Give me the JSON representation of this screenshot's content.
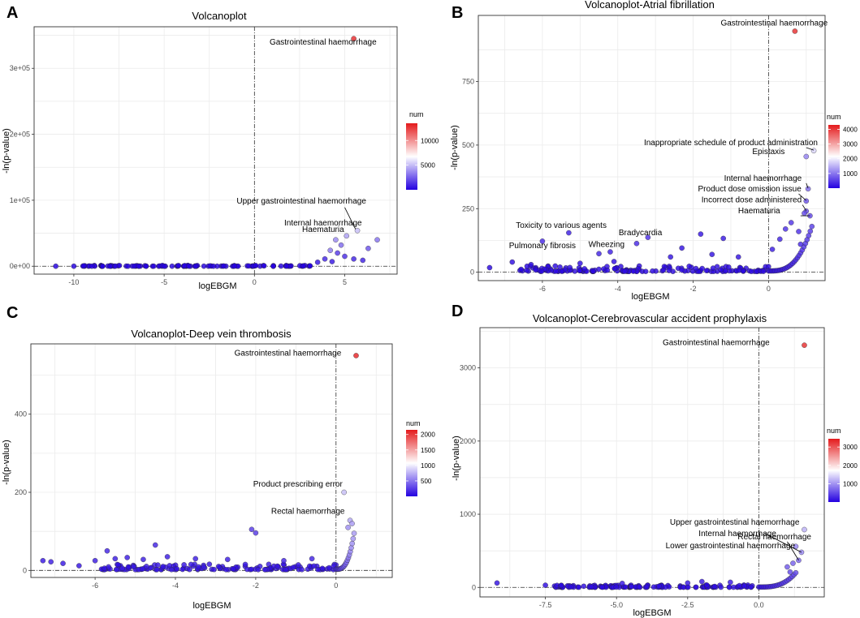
{
  "colors": {
    "low": "#2400e0",
    "mid": "#ffffff",
    "high": "#e41a1c"
  },
  "chart_data": [
    {
      "id": "A",
      "type": "scatter",
      "panel_label": "A",
      "title": "Volcanoplot",
      "xlabel": "logEBGM",
      "ylabel": "-ln(p-value)",
      "xlim": [
        -12.2,
        7.9
      ],
      "ylim": [
        -12000,
        363000
      ],
      "xticks": [
        -10,
        -5,
        0,
        5
      ],
      "yticks": [
        0,
        100000,
        200000,
        300000
      ],
      "ytick_labels": [
        "0e+00",
        "1e+05",
        "2e+05",
        "3e+05"
      ],
      "legend": {
        "title": "num",
        "min": 1,
        "max": 13500,
        "ticks": [
          5000,
          10000
        ]
      },
      "points": [
        {
          "x": 5.5,
          "y": 345000,
          "num": 13000
        },
        {
          "x": 6.8,
          "y": 40000,
          "num": 3000
        },
        {
          "x": 6.3,
          "y": 27000,
          "num": 2200
        },
        {
          "x": 5.7,
          "y": 54000,
          "num": 5000
        },
        {
          "x": 5.1,
          "y": 46000,
          "num": 4200
        },
        {
          "x": 4.8,
          "y": 32000,
          "num": 2800
        },
        {
          "x": 4.5,
          "y": 40000,
          "num": 3600
        },
        {
          "x": 4.2,
          "y": 24000,
          "num": 3200
        },
        {
          "x": 4.6,
          "y": 20000,
          "num": 1500
        },
        {
          "x": 5.0,
          "y": 15000,
          "num": 1200
        },
        {
          "x": 5.5,
          "y": 11000,
          "num": 900
        },
        {
          "x": 6.0,
          "y": 9000,
          "num": 900
        },
        {
          "x": 3.9,
          "y": 11000,
          "num": 1000
        },
        {
          "x": 4.3,
          "y": 7000,
          "num": 600
        },
        {
          "x": 3.5,
          "y": 6000,
          "num": 500
        },
        {
          "x": -11.0,
          "y": 0,
          "num": 50
        },
        {
          "x": -10.0,
          "y": 0,
          "num": 50
        },
        {
          "x": -9.0,
          "y": 0,
          "num": 50
        },
        {
          "x": -8.0,
          "y": 0,
          "num": 50
        },
        {
          "x": -7.0,
          "y": 0,
          "num": 50
        },
        {
          "x": -6.0,
          "y": 0,
          "num": 50
        },
        {
          "x": -5.0,
          "y": 0,
          "num": 50
        }
      ],
      "bulk": {
        "x_from": -9.5,
        "x_to": 3.2,
        "count": 110,
        "y_base": 0,
        "y_amp": 1200,
        "num": 60
      },
      "annotations": [
        {
          "text": "Gastrointestinal haemorrhage",
          "x": 3.8,
          "y": 336000,
          "anchor": "middle"
        },
        {
          "text": "Upper gastrointestinal haemorrhage",
          "x": 2.6,
          "y": 95000,
          "anchor": "middle"
        },
        {
          "text": "Internal haemorrhage",
          "x": 3.8,
          "y": 62000,
          "anchor": "middle"
        },
        {
          "text": "Haematuria",
          "x": 3.8,
          "y": 52000,
          "anchor": "middle"
        }
      ],
      "leaders": [
        {
          "x1": 5.0,
          "y1": 89000,
          "x2": 5.6,
          "y2": 56000
        }
      ]
    },
    {
      "id": "B",
      "type": "scatter",
      "panel_label": "B",
      "title": "Volcanoplot-Atrial fibrillation",
      "xlabel": "logEBGM",
      "ylabel": "-ln(p-value)",
      "xlim": [
        -7.7,
        1.5
      ],
      "ylim": [
        -33,
        1010
      ],
      "xticks": [
        -6,
        -4,
        -2,
        0
      ],
      "yticks": [
        0,
        250,
        500,
        750
      ],
      "ytick_labels": [
        "0",
        "250",
        "500",
        "750"
      ],
      "legend": {
        "title": "num",
        "min": 1,
        "max": 4300,
        "ticks": [
          1000,
          2000,
          3000,
          4000
        ]
      },
      "points": [
        {
          "x": 0.7,
          "y": 948,
          "num": 4100
        },
        {
          "x": 1.2,
          "y": 478,
          "num": 1800
        },
        {
          "x": 1.0,
          "y": 455,
          "num": 1100
        },
        {
          "x": 1.05,
          "y": 328,
          "num": 900
        },
        {
          "x": 1.0,
          "y": 280,
          "num": 700
        },
        {
          "x": 1.0,
          "y": 240,
          "num": 650
        },
        {
          "x": 1.1,
          "y": 222,
          "num": 600
        },
        {
          "x": 0.95,
          "y": 232,
          "num": 650
        },
        {
          "x": -6.0,
          "y": 122,
          "num": 350
        },
        {
          "x": -5.3,
          "y": 155,
          "num": 250
        },
        {
          "x": -3.2,
          "y": 137,
          "num": 400
        },
        {
          "x": -3.5,
          "y": 113,
          "num": 350
        },
        {
          "x": -4.5,
          "y": 73,
          "num": 300
        },
        {
          "x": -4.2,
          "y": 80,
          "num": 250
        },
        {
          "x": -1.2,
          "y": 133,
          "num": 200
        },
        {
          "x": -1.8,
          "y": 150,
          "num": 180
        },
        {
          "x": -7.4,
          "y": 18,
          "num": 60
        },
        {
          "x": -6.8,
          "y": 40,
          "num": 120
        },
        {
          "x": -6.3,
          "y": 30,
          "num": 100
        },
        {
          "x": -5.0,
          "y": 35,
          "num": 110
        },
        {
          "x": -4.1,
          "y": 42,
          "num": 120
        },
        {
          "x": -2.6,
          "y": 60,
          "num": 150
        },
        {
          "x": -2.3,
          "y": 95,
          "num": 150
        },
        {
          "x": -1.5,
          "y": 70,
          "num": 150
        },
        {
          "x": -0.8,
          "y": 60,
          "num": 150
        },
        {
          "x": 0.1,
          "y": 90,
          "num": 250
        },
        {
          "x": 0.3,
          "y": 130,
          "num": 300
        },
        {
          "x": 0.45,
          "y": 170,
          "num": 400
        },
        {
          "x": 0.6,
          "y": 195,
          "num": 450
        },
        {
          "x": 0.8,
          "y": 160,
          "num": 400
        },
        {
          "x": 0.85,
          "y": 110,
          "num": 350
        }
      ],
      "bulk": {
        "x_from": -6.6,
        "x_to": 0.0,
        "count": 150,
        "y_base": 3,
        "y_amp": 22,
        "num": 60
      },
      "curve": {
        "x_from": 0.0,
        "x_to": 1.15,
        "count": 28,
        "y_start": 5,
        "y_end": 180,
        "num": 400
      },
      "annotations": [
        {
          "text": "Gastrointestinal haemorrhage",
          "x": 0.15,
          "y": 970,
          "anchor": "middle"
        },
        {
          "text": "Inappropriate schedule of product administration",
          "x": -1.0,
          "y": 500,
          "anchor": "middle"
        },
        {
          "text": "Epistaxis",
          "x": 0.0,
          "y": 465,
          "anchor": "middle"
        },
        {
          "text": "Internal haemorrhage",
          "x": -0.15,
          "y": 360,
          "anchor": "middle"
        },
        {
          "text": "Product dose omission issue",
          "x": -0.5,
          "y": 318,
          "anchor": "middle"
        },
        {
          "text": "Incorrect dose administered",
          "x": -0.45,
          "y": 275,
          "anchor": "middle"
        },
        {
          "text": "Haematuria",
          "x": -0.25,
          "y": 232,
          "anchor": "middle"
        },
        {
          "text": "Toxicity to various agents",
          "x": -5.5,
          "y": 175,
          "anchor": "middle"
        },
        {
          "text": "Bradycardia",
          "x": -3.4,
          "y": 145,
          "anchor": "middle"
        },
        {
          "text": "Pulmonary fibrosis",
          "x": -6.0,
          "y": 95,
          "anchor": "middle"
        },
        {
          "text": "Wheezing",
          "x": -4.3,
          "y": 100,
          "anchor": "middle"
        }
      ],
      "leaders": [
        {
          "x1": 1.0,
          "y1": 350,
          "x2": 1.05,
          "y2": 330
        },
        {
          "x1": 0.8,
          "y1": 308,
          "x2": 1.0,
          "y2": 282
        },
        {
          "x1": 0.9,
          "y1": 265,
          "x2": 1.0,
          "y2": 242
        },
        {
          "x1": 0.85,
          "y1": 222,
          "x2": 1.1,
          "y2": 222
        },
        {
          "x1": 1.0,
          "y1": 490,
          "x2": 1.2,
          "y2": 480
        }
      ]
    },
    {
      "id": "C",
      "type": "scatter",
      "panel_label": "C",
      "title": "Volcanoplot-Deep vein thrombosis",
      "xlabel": "logEBGM",
      "ylabel": "-ln(p-value)",
      "xlim": [
        -7.6,
        1.4
      ],
      "ylim": [
        -18,
        580
      ],
      "xticks": [
        -6,
        -4,
        -2,
        0
      ],
      "yticks": [
        0,
        200,
        400
      ],
      "ytick_labels": [
        "0",
        "200",
        "400"
      ],
      "legend": {
        "title": "num",
        "min": 1,
        "max": 2150,
        "ticks": [
          500,
          1000,
          1500,
          2000
        ]
      },
      "points": [
        {
          "x": 0.5,
          "y": 550,
          "num": 2100
        },
        {
          "x": 0.2,
          "y": 200,
          "num": 800
        },
        {
          "x": 0.35,
          "y": 128,
          "num": 700
        },
        {
          "x": 0.4,
          "y": 120,
          "num": 650
        },
        {
          "x": 0.3,
          "y": 110,
          "num": 600
        },
        {
          "x": -2.1,
          "y": 105,
          "num": 250
        },
        {
          "x": -2.0,
          "y": 96,
          "num": 250
        },
        {
          "x": -4.5,
          "y": 65,
          "num": 150
        },
        {
          "x": -5.7,
          "y": 50,
          "num": 150
        },
        {
          "x": -7.3,
          "y": 25,
          "num": 100
        },
        {
          "x": -7.1,
          "y": 22,
          "num": 120
        },
        {
          "x": -6.8,
          "y": 18,
          "num": 100
        },
        {
          "x": -6.4,
          "y": 12,
          "num": 80
        },
        {
          "x": -6.0,
          "y": 25,
          "num": 120
        },
        {
          "x": -5.5,
          "y": 30,
          "num": 120
        },
        {
          "x": -5.2,
          "y": 33,
          "num": 120
        },
        {
          "x": -4.8,
          "y": 28,
          "num": 120
        },
        {
          "x": -4.2,
          "y": 35,
          "num": 120
        },
        {
          "x": -3.5,
          "y": 30,
          "num": 120
        },
        {
          "x": -2.7,
          "y": 28,
          "num": 120
        },
        {
          "x": -1.3,
          "y": 25,
          "num": 150
        },
        {
          "x": -0.6,
          "y": 30,
          "num": 150
        }
      ],
      "bulk": {
        "x_from": -5.9,
        "x_to": 0.0,
        "count": 150,
        "y_base": 2,
        "y_amp": 14,
        "num": 60
      },
      "curve": {
        "x_from": 0.0,
        "x_to": 0.45,
        "count": 20,
        "y_start": 3,
        "y_end": 95,
        "num": 500
      },
      "annotations": [
        {
          "text": "Gastrointestinal haemorrhage",
          "x": -1.2,
          "y": 550,
          "anchor": "middle"
        },
        {
          "text": "Product prescribing error",
          "x": -0.95,
          "y": 215,
          "anchor": "middle"
        },
        {
          "text": "Rectal haemorrhage",
          "x": -0.7,
          "y": 145,
          "anchor": "middle"
        }
      ],
      "leaders": []
    },
    {
      "id": "D",
      "type": "scatter",
      "panel_label": "D",
      "title": "Volcanoplot-Cerebrovascular accident prophylaxis",
      "xlabel": "logEBGM",
      "ylabel": "-ln(p-value)",
      "xlim": [
        -9.8,
        2.3
      ],
      "ylim": [
        -130,
        3550
      ],
      "xticks": [
        -7.5,
        -5.0,
        -2.5,
        0.0
      ],
      "xtick_labels": [
        "-7.5",
        "-5.0",
        "-2.5",
        "0.0"
      ],
      "yticks": [
        0,
        1000,
        2000,
        3000
      ],
      "ytick_labels": [
        "0",
        "1000",
        "2000",
        "3000"
      ],
      "legend": {
        "title": "num",
        "min": 1,
        "max": 3450,
        "ticks": [
          1000,
          2000,
          3000
        ]
      },
      "points": [
        {
          "x": 1.6,
          "y": 3310,
          "num": 3300
        },
        {
          "x": 1.6,
          "y": 790,
          "num": 1200
        },
        {
          "x": 1.3,
          "y": 560,
          "num": 900
        },
        {
          "x": 1.5,
          "y": 480,
          "num": 900
        },
        {
          "x": 1.4,
          "y": 370,
          "num": 700
        },
        {
          "x": 1.2,
          "y": 330,
          "num": 650
        },
        {
          "x": 1.0,
          "y": 280,
          "num": 600
        },
        {
          "x": 1.1,
          "y": 210,
          "num": 500
        },
        {
          "x": -9.2,
          "y": 60,
          "num": 120
        },
        {
          "x": -7.5,
          "y": 30,
          "num": 80
        },
        {
          "x": -2.0,
          "y": 80,
          "num": 180
        },
        {
          "x": -2.5,
          "y": 60,
          "num": 160
        },
        {
          "x": -4.8,
          "y": 55,
          "num": 150
        },
        {
          "x": -1.0,
          "y": 70,
          "num": 170
        }
      ],
      "bulk": {
        "x_from": -7.2,
        "x_to": 0.0,
        "count": 150,
        "y_base": 2,
        "y_amp": 30,
        "num": 60
      },
      "curve": {
        "x_from": 0.0,
        "x_to": 1.3,
        "count": 22,
        "y_start": 5,
        "y_end": 200,
        "num": 400
      },
      "annotations": [
        {
          "text": "Gastrointestinal haemorrhage",
          "x": -1.5,
          "y": 3310,
          "anchor": "middle"
        },
        {
          "text": "Upper gastrointestinal haemorrhage",
          "x": -0.85,
          "y": 855,
          "anchor": "middle"
        },
        {
          "text": "Internal haemorrhage",
          "x": -0.75,
          "y": 700,
          "anchor": "middle"
        },
        {
          "text": "Rectal haemorrhage",
          "x": 0.55,
          "y": 655,
          "anchor": "middle"
        },
        {
          "text": "Lower gastrointestinal haemorrhage",
          "x": -1.0,
          "y": 535,
          "anchor": "middle"
        }
      ],
      "leaders": [
        {
          "x1": 0.2,
          "y1": 740,
          "x2": 1.5,
          "y2": 480
        },
        {
          "x1": 1.0,
          "y1": 625,
          "x2": 1.4,
          "y2": 370
        }
      ]
    }
  ]
}
